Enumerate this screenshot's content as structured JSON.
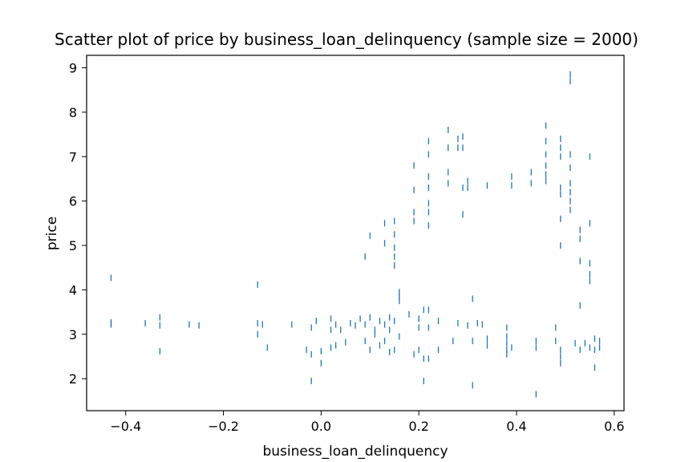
{
  "chart_data": {
    "type": "scatter",
    "title": "Scatter plot of price by business_loan_delinquency (sample size = 2000)",
    "xlabel": "business_loan_delinquency",
    "ylabel": "price",
    "xlim": [
      -0.48,
      0.62
    ],
    "ylim": [
      1.28,
      9.28
    ],
    "x_ticks": [
      -0.4,
      -0.2,
      0.0,
      0.2,
      0.4,
      0.6
    ],
    "x_tick_labels": [
      "−0.4",
      "−0.2",
      "0.0",
      "0.2",
      "0.4",
      "0.6"
    ],
    "y_ticks": [
      2,
      3,
      4,
      5,
      6,
      7,
      8,
      9
    ],
    "y_tick_labels": [
      "2",
      "3",
      "4",
      "5",
      "6",
      "7",
      "8",
      "9"
    ],
    "grid": false,
    "marker": "vertical-tick",
    "color": "#1f77b4",
    "points": [
      [
        -0.43,
        4.27
      ],
      [
        -0.43,
        3.22
      ],
      [
        -0.43,
        3.27
      ],
      [
        -0.36,
        3.25
      ],
      [
        -0.33,
        3.2
      ],
      [
        -0.33,
        3.38
      ],
      [
        -0.33,
        2.62
      ],
      [
        -0.27,
        3.22
      ],
      [
        -0.25,
        3.2
      ],
      [
        -0.13,
        4.12
      ],
      [
        -0.13,
        3.25
      ],
      [
        -0.13,
        3.0
      ],
      [
        -0.12,
        3.22
      ],
      [
        -0.11,
        2.7
      ],
      [
        -0.06,
        3.22
      ],
      [
        -0.03,
        2.65
      ],
      [
        -0.02,
        1.95
      ],
      [
        -0.02,
        3.15
      ],
      [
        -0.02,
        2.55
      ],
      [
        -0.01,
        3.3
      ],
      [
        0.0,
        2.62
      ],
      [
        0.0,
        2.35
      ],
      [
        0.02,
        3.35
      ],
      [
        0.02,
        3.1
      ],
      [
        0.02,
        2.7
      ],
      [
        0.03,
        3.22
      ],
      [
        0.03,
        2.75
      ],
      [
        0.04,
        3.1
      ],
      [
        0.05,
        2.82
      ],
      [
        0.06,
        3.25
      ],
      [
        0.07,
        3.2
      ],
      [
        0.08,
        3.35
      ],
      [
        0.09,
        3.22
      ],
      [
        0.09,
        2.85
      ],
      [
        0.09,
        4.75
      ],
      [
        0.1,
        5.22
      ],
      [
        0.1,
        3.38
      ],
      [
        0.1,
        2.65
      ],
      [
        0.11,
        3.1
      ],
      [
        0.11,
        3.0
      ],
      [
        0.12,
        3.3
      ],
      [
        0.12,
        2.75
      ],
      [
        0.13,
        5.5
      ],
      [
        0.13,
        5.05
      ],
      [
        0.13,
        3.22
      ],
      [
        0.13,
        2.85
      ],
      [
        0.14,
        3.38
      ],
      [
        0.14,
        3.1
      ],
      [
        0.14,
        2.6
      ],
      [
        0.15,
        5.55
      ],
      [
        0.15,
        5.25
      ],
      [
        0.15,
        4.95
      ],
      [
        0.15,
        4.75
      ],
      [
        0.15,
        4.55
      ],
      [
        0.15,
        3.3
      ],
      [
        0.15,
        2.65
      ],
      [
        0.16,
        3.95
      ],
      [
        0.16,
        3.85
      ],
      [
        0.16,
        3.75
      ],
      [
        0.16,
        2.95
      ],
      [
        0.18,
        3.45
      ],
      [
        0.19,
        2.55
      ],
      [
        0.19,
        5.75
      ],
      [
        0.19,
        5.55
      ],
      [
        0.19,
        6.25
      ],
      [
        0.19,
        6.8
      ],
      [
        0.2,
        3.35
      ],
      [
        0.2,
        2.65
      ],
      [
        0.2,
        3.15
      ],
      [
        0.21,
        1.95
      ],
      [
        0.21,
        2.45
      ],
      [
        0.21,
        3.55
      ],
      [
        0.22,
        7.35
      ],
      [
        0.22,
        7.05
      ],
      [
        0.22,
        6.55
      ],
      [
        0.22,
        6.3
      ],
      [
        0.22,
        5.95
      ],
      [
        0.22,
        5.75
      ],
      [
        0.22,
        5.45
      ],
      [
        0.22,
        3.55
      ],
      [
        0.22,
        3.15
      ],
      [
        0.22,
        2.45
      ],
      [
        0.24,
        3.3
      ],
      [
        0.24,
        2.65
      ],
      [
        0.26,
        7.6
      ],
      [
        0.26,
        7.2
      ],
      [
        0.26,
        6.65
      ],
      [
        0.26,
        6.4
      ],
      [
        0.27,
        2.85
      ],
      [
        0.28,
        7.4
      ],
      [
        0.28,
        7.2
      ],
      [
        0.28,
        3.25
      ],
      [
        0.29,
        7.45
      ],
      [
        0.29,
        7.2
      ],
      [
        0.29,
        6.3
      ],
      [
        0.29,
        5.7
      ],
      [
        0.3,
        6.45
      ],
      [
        0.3,
        6.3
      ],
      [
        0.3,
        3.2
      ],
      [
        0.31,
        3.8
      ],
      [
        0.31,
        2.85
      ],
      [
        0.31,
        1.85
      ],
      [
        0.32,
        3.25
      ],
      [
        0.33,
        3.22
      ],
      [
        0.34,
        6.35
      ],
      [
        0.34,
        2.9
      ],
      [
        0.34,
        2.75
      ],
      [
        0.38,
        3.15
      ],
      [
        0.38,
        2.95
      ],
      [
        0.38,
        2.8
      ],
      [
        0.38,
        2.65
      ],
      [
        0.38,
        2.55
      ],
      [
        0.39,
        6.55
      ],
      [
        0.39,
        6.35
      ],
      [
        0.39,
        2.7
      ],
      [
        0.43,
        6.65
      ],
      [
        0.43,
        6.4
      ],
      [
        0.44,
        2.85
      ],
      [
        0.44,
        2.7
      ],
      [
        0.44,
        1.65
      ],
      [
        0.46,
        7.7
      ],
      [
        0.46,
        7.35
      ],
      [
        0.46,
        7.05
      ],
      [
        0.46,
        6.8
      ],
      [
        0.46,
        6.6
      ],
      [
        0.46,
        6.45
      ],
      [
        0.48,
        3.15
      ],
      [
        0.48,
        2.85
      ],
      [
        0.49,
        7.4
      ],
      [
        0.49,
        7.2
      ],
      [
        0.49,
        7.0
      ],
      [
        0.49,
        6.3
      ],
      [
        0.49,
        6.15
      ],
      [
        0.49,
        5.6
      ],
      [
        0.49,
        5.0
      ],
      [
        0.49,
        2.65
      ],
      [
        0.49,
        2.5
      ],
      [
        0.49,
        2.35
      ],
      [
        0.51,
        8.85
      ],
      [
        0.51,
        8.7
      ],
      [
        0.51,
        7.05
      ],
      [
        0.51,
        6.75
      ],
      [
        0.51,
        6.4
      ],
      [
        0.51,
        6.2
      ],
      [
        0.51,
        6.0
      ],
      [
        0.51,
        5.8
      ],
      [
        0.52,
        2.8
      ],
      [
        0.53,
        5.35
      ],
      [
        0.53,
        5.15
      ],
      [
        0.53,
        4.65
      ],
      [
        0.53,
        3.65
      ],
      [
        0.53,
        2.65
      ],
      [
        0.54,
        2.8
      ],
      [
        0.55,
        7.0
      ],
      [
        0.55,
        5.5
      ],
      [
        0.55,
        4.6
      ],
      [
        0.55,
        4.35
      ],
      [
        0.55,
        4.2
      ],
      [
        0.55,
        2.7
      ],
      [
        0.56,
        2.9
      ],
      [
        0.56,
        2.65
      ],
      [
        0.56,
        2.25
      ],
      [
        0.57,
        2.7
      ],
      [
        0.57,
        2.85
      ]
    ]
  }
}
